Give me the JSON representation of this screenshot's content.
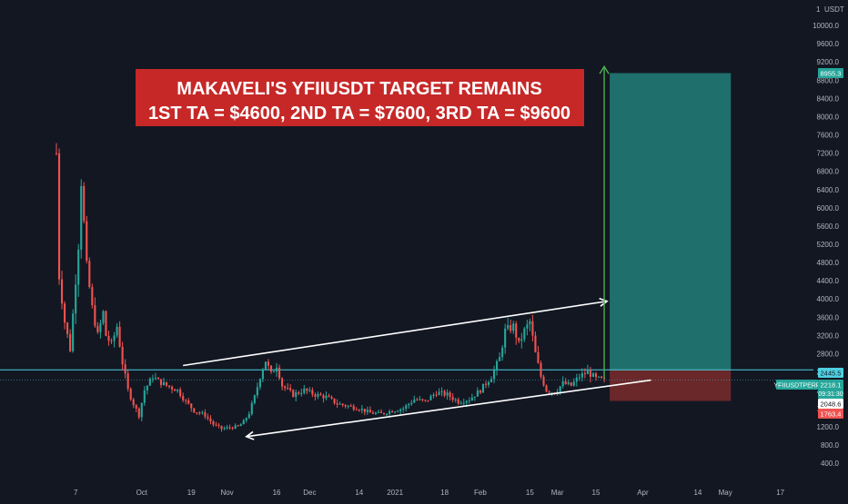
{
  "colors": {
    "background": "#131722",
    "up_candle": "#26a69a",
    "down_candle": "#ef5350",
    "channel_line": "#ffffff",
    "horizontal_line": "#4dd0e1",
    "banner_bg": "#c62828",
    "banner_text": "#ffffff",
    "target_zone": "#26a69a",
    "stop_zone": "#7a2c2c",
    "target_arrow": "#4caf50",
    "axis_text": "#b2b5be",
    "current_price_bg": "#26a69a",
    "low_label_bg": "#ef5350"
  },
  "chart_data": {
    "type": "candlestick",
    "symbol": "YFIIUSDTPERP",
    "currency_label": "USDT",
    "y_axis": {
      "scale": "linear",
      "range": [
        0,
        10400
      ],
      "ticks": [
        "400.0",
        "800.0",
        "1200.0",
        "1600.0",
        "2000.0",
        "2400.0",
        "2800.0",
        "3200.0",
        "3600.0",
        "4000.0",
        "4400.0",
        "4800.0",
        "5200.0",
        "5600.0",
        "6000.0",
        "6400.0",
        "6800.0",
        "7200.0",
        "7600.0",
        "8000.0",
        "8400.0",
        "8800.0",
        "9200.0",
        "9600.0",
        "10000.0"
      ],
      "top_label": "1"
    },
    "x_axis": {
      "ticks": [
        "7",
        "Oct",
        "19",
        "Nov",
        "16",
        "Dec",
        "14",
        "2021",
        "18",
        "Feb",
        "15",
        "Mar",
        "15",
        "Apr",
        "14",
        "May",
        "17"
      ],
      "tick_values": [
        7,
        31,
        49,
        62,
        80,
        92,
        110,
        123,
        141,
        154,
        172,
        182,
        196,
        213,
        233,
        243,
        263
      ],
      "range": [
        0,
        275
      ]
    },
    "price_levels": {
      "target": "8955.3",
      "entry": "2445.5",
      "current": "2218.1",
      "countdown": "09:31:30",
      "stop_mid": "2048.6",
      "stop": "1763.4"
    },
    "banner": {
      "line1": "MAKAVELI'S YFIIUSDT  TARGET REMAINS",
      "line2": "1ST TA = $4600, 2ND TA = $7600, 3RD TA = $9600"
    },
    "channel": {
      "upper": [
        [
          46,
          2540
        ],
        [
          200,
          3950
        ]
      ],
      "lower": [
        [
          69,
          980
        ],
        [
          216,
          2220
        ]
      ]
    },
    "horizontal_line": 2445.5,
    "target_zone": {
      "x": [
        201,
        245
      ],
      "y": [
        2445.5,
        8955.3
      ]
    },
    "stop_zone": {
      "x": [
        201,
        245
      ],
      "y": [
        1763.4,
        2445.5
      ]
    },
    "target_arrow": {
      "x": 199,
      "y": [
        2250,
        9100
      ]
    },
    "keypoints": [
      [
        0,
        7200
      ],
      [
        1,
        4500
      ],
      [
        3,
        3500
      ],
      [
        5,
        2900
      ],
      [
        8,
        5200
      ],
      [
        9,
        6600
      ],
      [
        11,
        4700
      ],
      [
        13,
        3800
      ],
      [
        15,
        3200
      ],
      [
        17,
        3700
      ],
      [
        18,
        3200
      ],
      [
        20,
        3000
      ],
      [
        22,
        3400
      ],
      [
        24,
        2600
      ],
      [
        26,
        2000
      ],
      [
        28,
        1700
      ],
      [
        30,
        1450
      ],
      [
        32,
        2000
      ],
      [
        35,
        2300
      ],
      [
        37,
        2200
      ],
      [
        40,
        2100
      ],
      [
        44,
        2000
      ],
      [
        47,
        1750
      ],
      [
        50,
        1550
      ],
      [
        54,
        1450
      ],
      [
        57,
        1250
      ],
      [
        60,
        1150
      ],
      [
        63,
        1180
      ],
      [
        66,
        1200
      ],
      [
        68,
        1300
      ],
      [
        70,
        1500
      ],
      [
        72,
        1850
      ],
      [
        74,
        2300
      ],
      [
        76,
        2650
      ],
      [
        78,
        2350
      ],
      [
        80,
        2550
      ],
      [
        82,
        2100
      ],
      [
        86,
        1900
      ],
      [
        90,
        2000
      ],
      [
        94,
        1900
      ],
      [
        98,
        1850
      ],
      [
        102,
        1700
      ],
      [
        106,
        1650
      ],
      [
        110,
        1600
      ],
      [
        114,
        1500
      ],
      [
        118,
        1480
      ],
      [
        122,
        1550
      ],
      [
        126,
        1600
      ],
      [
        130,
        1800
      ],
      [
        134,
        1750
      ],
      [
        138,
        1950
      ],
      [
        142,
        1900
      ],
      [
        146,
        1750
      ],
      [
        150,
        1800
      ],
      [
        154,
        2000
      ],
      [
        158,
        2300
      ],
      [
        161,
        2700
      ],
      [
        163,
        3300
      ],
      [
        166,
        3400
      ],
      [
        168,
        3000
      ],
      [
        170,
        3300
      ],
      [
        172,
        3500
      ],
      [
        174,
        2800
      ],
      [
        176,
        2300
      ],
      [
        178,
        2000
      ],
      [
        181,
        1950
      ],
      [
        184,
        2150
      ],
      [
        187,
        2100
      ],
      [
        190,
        2300
      ],
      [
        193,
        2400
      ],
      [
        196,
        2250
      ],
      [
        199,
        2218
      ]
    ]
  }
}
